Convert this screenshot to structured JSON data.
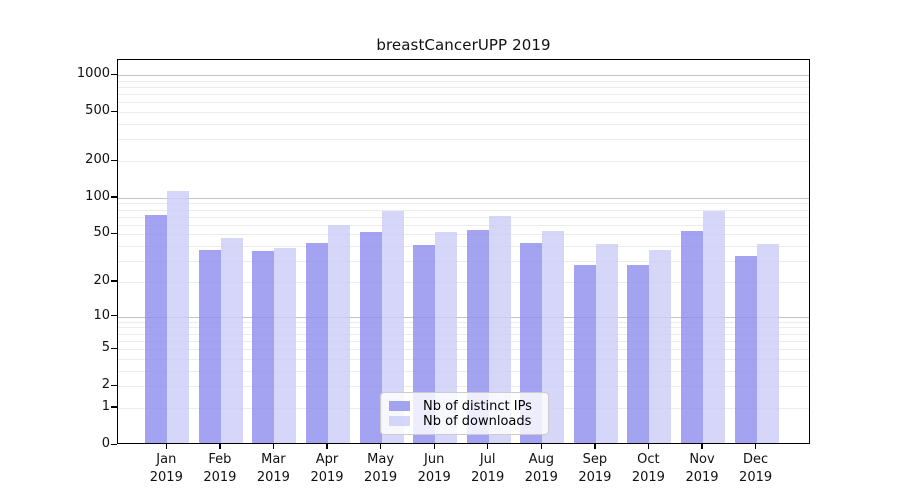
{
  "title": "breastCancerUPP 2019",
  "chart_data": {
    "type": "bar",
    "title": "breastCancerUPP 2019",
    "categories": [
      "Jan",
      "Feb",
      "Mar",
      "Apr",
      "May",
      "Jun",
      "Jul",
      "Aug",
      "Sep",
      "Oct",
      "Nov",
      "Dec"
    ],
    "year": "2019",
    "series": [
      {
        "name": "Nb of distinct IPs",
        "color": "#8c8cee",
        "values": [
          70,
          36,
          35,
          41,
          50,
          39,
          52,
          41,
          27,
          27,
          51,
          32
        ]
      },
      {
        "name": "Nb of downloads",
        "color": "#ccccf8",
        "values": [
          110,
          45,
          37,
          58,
          75,
          50,
          69,
          51,
          40,
          36,
          75,
          40
        ]
      }
    ],
    "yticks": [
      0,
      1,
      2,
      5,
      10,
      20,
      50,
      100,
      200,
      500,
      1000
    ],
    "scale": "log1p",
    "ylim": [
      0,
      1300
    ],
    "grid": true,
    "legend_position": "lower center",
    "colors": {
      "grid_major": "#c3c3c3",
      "grid_minor": "#ececec",
      "axis": "#000000",
      "background": "#ffffff"
    }
  }
}
